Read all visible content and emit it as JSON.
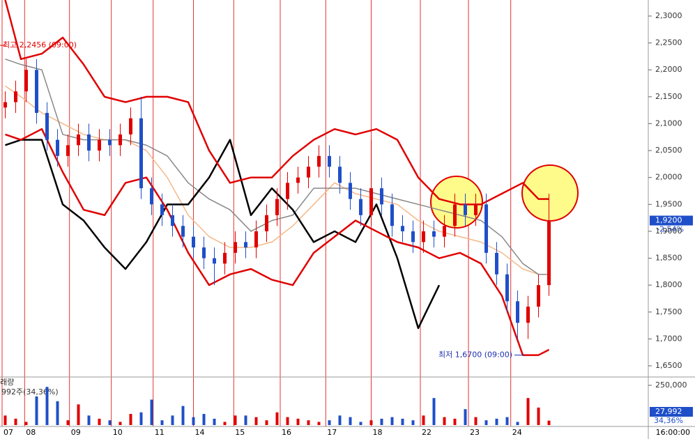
{
  "chart_data": {
    "type": "candlestick",
    "xlim": [
      0,
      124
    ],
    "ylim": [
      1.6306,
      2.3298
    ],
    "xticks": [
      {
        "value": 0.4,
        "label": "07"
      },
      {
        "value": 4.7,
        "label": "08"
      },
      {
        "value": 13.3,
        "label": "09"
      },
      {
        "value": 21.3,
        "label": "10"
      },
      {
        "value": 29.3,
        "label": "11"
      },
      {
        "value": 37,
        "label": "14"
      },
      {
        "value": 44.7,
        "label": "15"
      },
      {
        "value": 53.6,
        "label": "16"
      },
      {
        "value": 62.3,
        "label": "17"
      },
      {
        "value": 71,
        "label": "18"
      },
      {
        "value": 80.4,
        "label": "22"
      },
      {
        "value": 89.6,
        "label": "23"
      },
      {
        "value": 97.7,
        "label": "24"
      }
    ],
    "yticks": [
      {
        "value": 2.3,
        "label": "2,3000"
      },
      {
        "value": 2.25,
        "label": "2,2500"
      },
      {
        "value": 2.2,
        "label": "2,2000"
      },
      {
        "value": 2.15,
        "label": "2,1500"
      },
      {
        "value": 2.1,
        "label": "2,1000"
      },
      {
        "value": 2.05,
        "label": "2,0500"
      },
      {
        "value": 2.0,
        "label": "2,0000"
      },
      {
        "value": 1.95,
        "label": "1,9500"
      },
      {
        "value": 1.9,
        "label": "1,9000"
      },
      {
        "value": 1.85,
        "label": "1,8500"
      },
      {
        "value": 1.8,
        "label": "1,8000"
      },
      {
        "value": 1.75,
        "label": "1,7500"
      },
      {
        "value": 1.7,
        "label": "1,7000"
      },
      {
        "value": 1.65,
        "label": "1,6500"
      }
    ],
    "candles": {
      "up_color": "#e00000",
      "down_color": "#1f4fc8",
      "x": [
        1,
        3,
        5,
        7,
        9,
        11,
        13,
        15,
        17,
        19,
        21,
        23,
        25,
        27,
        29,
        31,
        33,
        35,
        37,
        39,
        41,
        43,
        45,
        47,
        49,
        51,
        53,
        55,
        57,
        59,
        61,
        63,
        65,
        67,
        69,
        71,
        73,
        75,
        77,
        79,
        81,
        83,
        85,
        87,
        89,
        91,
        93,
        95,
        97,
        99,
        101,
        103,
        105
      ],
      "open": [
        2.13,
        2.14,
        2.16,
        2.2,
        2.12,
        2.07,
        2.04,
        2.06,
        2.08,
        2.05,
        2.07,
        2.06,
        2.08,
        2.11,
        1.98,
        1.95,
        1.93,
        1.91,
        1.89,
        1.87,
        1.85,
        1.84,
        1.86,
        1.88,
        1.87,
        1.9,
        1.93,
        1.96,
        1.99,
        2.0,
        2.02,
        2.04,
        2.02,
        1.99,
        1.96,
        1.93,
        1.98,
        1.95,
        1.91,
        1.9,
        1.88,
        1.9,
        1.89,
        1.91,
        1.95,
        1.93,
        1.95,
        1.86,
        1.82,
        1.77,
        1.73,
        1.76,
        1.8
      ],
      "high": [
        2.16,
        2.18,
        2.22,
        2.22,
        2.14,
        2.09,
        2.08,
        2.1,
        2.1,
        2.09,
        2.09,
        2.1,
        2.13,
        2.15,
        2.0,
        1.97,
        1.95,
        1.93,
        1.91,
        1.89,
        1.87,
        1.88,
        1.9,
        1.9,
        1.92,
        1.95,
        1.98,
        2.01,
        2.02,
        2.04,
        2.06,
        2.06,
        2.04,
        2.01,
        1.98,
        2.07,
        2.0,
        1.97,
        1.93,
        1.92,
        1.92,
        1.92,
        1.93,
        1.97,
        1.97,
        1.97,
        1.97,
        1.88,
        1.84,
        1.79,
        1.78,
        1.82,
        1.97
      ],
      "low": [
        2.11,
        2.12,
        2.14,
        2.1,
        2.05,
        2.02,
        2.02,
        2.04,
        2.03,
        2.03,
        2.04,
        2.04,
        2.06,
        1.96,
        1.93,
        1.91,
        1.89,
        1.87,
        1.85,
        1.83,
        1.8,
        1.82,
        1.84,
        1.85,
        1.85,
        1.88,
        1.91,
        1.94,
        1.97,
        1.98,
        2.0,
        2.0,
        1.97,
        1.94,
        1.91,
        1.91,
        1.93,
        1.89,
        1.88,
        1.86,
        1.86,
        1.87,
        1.87,
        1.89,
        1.91,
        1.91,
        1.84,
        1.8,
        1.75,
        1.7,
        1.7,
        1.74,
        1.78
      ],
      "close": [
        2.14,
        2.16,
        2.2,
        2.12,
        2.07,
        2.04,
        2.06,
        2.08,
        2.05,
        2.07,
        2.06,
        2.08,
        2.11,
        1.98,
        1.95,
        1.93,
        1.91,
        1.89,
        1.87,
        1.85,
        1.84,
        1.86,
        1.88,
        1.87,
        1.9,
        1.93,
        1.96,
        1.99,
        2.0,
        2.02,
        2.04,
        2.02,
        1.99,
        1.96,
        1.93,
        1.98,
        1.95,
        1.91,
        1.9,
        1.88,
        1.9,
        1.89,
        1.91,
        1.95,
        1.93,
        1.95,
        1.86,
        1.82,
        1.77,
        1.73,
        1.76,
        1.8,
        1.92
      ]
    },
    "lines_x": [
      1,
      4,
      8,
      12,
      16,
      20,
      24,
      28,
      32,
      36,
      40,
      44,
      48,
      52,
      56,
      60,
      64,
      68,
      72,
      76,
      80,
      84,
      88,
      92,
      96,
      100,
      103,
      105
    ],
    "series": [
      {
        "color": "#f5b888",
        "width": 1.5,
        "values": [
          2.17,
          2.15,
          2.12,
          2.1,
          2.08,
          2.07,
          2.07,
          2.05,
          2.0,
          1.93,
          1.89,
          1.87,
          1.87,
          1.88,
          1.91,
          1.95,
          1.99,
          1.97,
          1.96,
          1.95,
          1.92,
          1.9,
          1.89,
          1.88,
          1.86,
          1.83,
          1.82,
          1.82
        ]
      },
      {
        "color": "#888888",
        "width": 1.5,
        "values": [
          2.22,
          2.21,
          2.2,
          2.08,
          2.07,
          2.07,
          2.07,
          2.06,
          2.04,
          1.99,
          1.96,
          1.94,
          1.9,
          1.92,
          1.93,
          1.98,
          1.98,
          1.98,
          1.97,
          1.96,
          1.95,
          1.94,
          1.93,
          1.92,
          1.89,
          1.84,
          1.82,
          1.82
        ]
      },
      {
        "color": "#000000",
        "width": 2.5,
        "values": [
          2.06,
          2.07,
          2.07,
          1.95,
          1.92,
          1.87,
          1.83,
          1.88,
          1.95,
          1.95,
          2.0,
          2.07,
          1.93,
          1.98,
          1.94,
          1.88,
          1.9,
          1.88,
          1.95,
          1.85,
          1.72,
          1.8,
          null,
          null,
          null,
          null,
          null,
          null
        ]
      },
      {
        "color": "#e00000",
        "width": 2.5,
        "values": [
          2.33,
          2.22,
          2.23,
          2.26,
          2.21,
          2.15,
          2.14,
          2.15,
          2.15,
          2.14,
          2.05,
          1.99,
          2.0,
          2.0,
          2.04,
          2.07,
          2.09,
          2.08,
          2.09,
          2.07,
          2.0,
          1.96,
          1.95,
          1.95,
          1.97,
          1.99,
          1.96,
          1.96
        ]
      },
      {
        "color": "#e00000",
        "width": 2.5,
        "values": [
          2.08,
          2.07,
          2.09,
          2.01,
          1.94,
          1.93,
          1.99,
          2.0,
          1.94,
          1.86,
          1.8,
          1.82,
          1.83,
          1.81,
          1.8,
          1.86,
          1.89,
          1.92,
          1.9,
          1.88,
          1.87,
          1.85,
          1.86,
          1.84,
          1.78,
          1.67,
          1.67,
          1.68
        ]
      }
    ],
    "annotations": [
      {
        "label": "최고 2,2456 (09:00)",
        "value": 2.2456,
        "color": "#e00000",
        "side": "left"
      },
      {
        "label": "최저 1,6700 (09:00)",
        "value": 1.67,
        "color": "#1f2fb0",
        "side": "right"
      }
    ],
    "last_price": {
      "value": 1.92,
      "label": "1,9200",
      "change": "-2,54%"
    },
    "time": "16:00:00",
    "volume": {
      "label": "거래량",
      "info": "992주(34,36%)",
      "ylim": [
        0,
        298000
      ],
      "yticks": [
        {
          "value": 250000,
          "label": "250,000"
        }
      ],
      "values": [
        60000,
        40000,
        20000,
        180000,
        240000,
        150000,
        30000,
        130000,
        60000,
        40000,
        30000,
        20000,
        70000,
        80000,
        160000,
        30000,
        60000,
        120000,
        50000,
        70000,
        40000,
        20000,
        60000,
        60000,
        50000,
        30000,
        80000,
        50000,
        40000,
        30000,
        20000,
        30000,
        60000,
        50000,
        20000,
        30000,
        40000,
        50000,
        40000,
        30000,
        60000,
        170000,
        50000,
        40000,
        100000,
        50000,
        30000,
        40000,
        50000,
        20000,
        170000,
        110000,
        27992
      ],
      "last": {
        "value": 27992,
        "label": "27,992"
      },
      "ratio": "34,36%"
    }
  }
}
